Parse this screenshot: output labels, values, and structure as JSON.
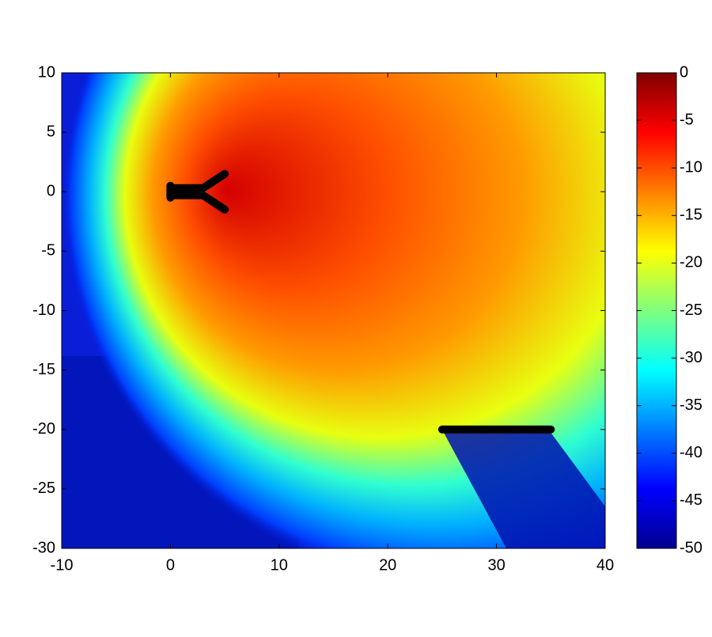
{
  "chart_data": {
    "type": "heatmap",
    "colormap": [
      "#00008f",
      "#0000ff",
      "#007fff",
      "#00ffff",
      "#7fff7f",
      "#ffff00",
      "#ff7f00",
      "#ff0000",
      "#7f0000"
    ],
    "xlim": [
      -10,
      40
    ],
    "ylim": [
      -30,
      10
    ],
    "xticks": [
      -10,
      0,
      10,
      20,
      30,
      40
    ],
    "yticks": [
      -30,
      -25,
      -20,
      -15,
      -10,
      -5,
      0,
      5,
      10
    ],
    "clim": [
      -50,
      0
    ],
    "cticks": [
      -50,
      -45,
      -40,
      -35,
      -30,
      -25,
      -20,
      -15,
      -10,
      -5,
      0
    ],
    "obstacles": [
      {
        "x": [
          0,
          0
        ],
        "y": [
          0.5,
          -0.5
        ]
      },
      {
        "x": [
          0,
          3,
          5
        ],
        "y": [
          0.3,
          0.3,
          1.5
        ]
      },
      {
        "x": [
          0,
          3,
          5
        ],
        "y": [
          -0.3,
          -0.3,
          -1.5
        ]
      },
      {
        "x": [
          25,
          35
        ],
        "y": [
          -20,
          -20
        ]
      }
    ]
  }
}
